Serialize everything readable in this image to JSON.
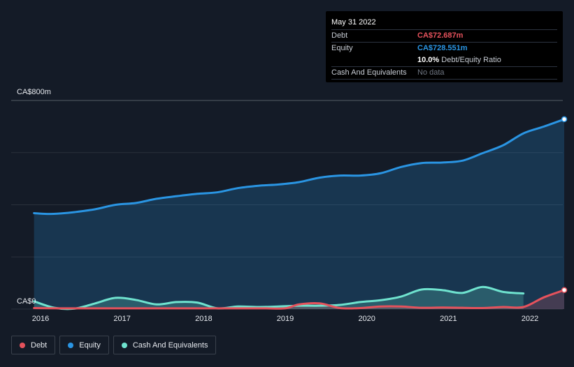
{
  "tooltip": {
    "date": "May 31 2022",
    "debt_label": "Debt",
    "debt_value": "CA$72.687m",
    "equity_label": "Equity",
    "equity_value": "CA$728.551m",
    "ratio_value": "10.0%",
    "ratio_label": "Debt/Equity Ratio",
    "cash_label": "Cash And Equivalents",
    "cash_value": "No data"
  },
  "legend": {
    "debt": "Debt",
    "equity": "Equity",
    "cash": "Cash And Equivalents"
  },
  "colors": {
    "debt": "#e5525c",
    "equity": "#2a95e3",
    "cash": "#6fe3cf",
    "background": "#141b27"
  },
  "chart_data": {
    "type": "area",
    "y_top_label": "CA$800m",
    "y_bottom_label": "CA$0",
    "ylim": [
      0,
      800
    ],
    "x_tick_labels": [
      "2016",
      "2017",
      "2018",
      "2019",
      "2020",
      "2021",
      "2022"
    ],
    "x_ticks": [
      2016,
      2017,
      2018,
      2019,
      2020,
      2021,
      2022
    ],
    "xlim": [
      2015.9,
      2022.42
    ],
    "series": [
      {
        "name": "Equity",
        "key": "equity",
        "x": [
          2015.92,
          2016.08,
          2016.25,
          2016.42,
          2016.67,
          2016.92,
          2017.17,
          2017.42,
          2017.67,
          2017.92,
          2018.17,
          2018.42,
          2018.67,
          2018.92,
          2019.17,
          2019.42,
          2019.67,
          2019.92,
          2020.17,
          2020.42,
          2020.67,
          2020.92,
          2021.17,
          2021.42,
          2021.67,
          2021.92,
          2022.17,
          2022.42
        ],
        "values": [
          368,
          365,
          367,
          372,
          383,
          400,
          407,
          423,
          433,
          442,
          448,
          464,
          473,
          478,
          487,
          504,
          512,
          512,
          521,
          545,
          560,
          562,
          569,
          598,
          628,
          674,
          700,
          728
        ]
      },
      {
        "name": "Cash And Equivalents",
        "key": "cash",
        "x": [
          2015.92,
          2016.17,
          2016.42,
          2016.67,
          2016.92,
          2017.17,
          2017.42,
          2017.67,
          2017.92,
          2018.17,
          2018.42,
          2018.67,
          2018.92,
          2019.17,
          2019.42,
          2019.67,
          2019.92,
          2020.17,
          2020.42,
          2020.67,
          2020.92,
          2021.17,
          2021.42,
          2021.67,
          2021.92
        ],
        "values": [
          30,
          5,
          2,
          22,
          43,
          35,
          18,
          27,
          25,
          3,
          10,
          8,
          10,
          13,
          13,
          16,
          27,
          34,
          48,
          75,
          73,
          62,
          85,
          66,
          60
        ]
      },
      {
        "name": "Debt",
        "key": "debt",
        "x": [
          2015.92,
          2016.25,
          2016.5,
          2016.75,
          2017.0,
          2017.25,
          2017.5,
          2017.75,
          2018.0,
          2018.25,
          2018.5,
          2018.75,
          2019.0,
          2019.17,
          2019.42,
          2019.67,
          2019.92,
          2020.17,
          2020.42,
          2020.67,
          2020.92,
          2021.17,
          2021.42,
          2021.67,
          2021.92,
          2022.17,
          2022.42
        ],
        "values": [
          4,
          3,
          3,
          3,
          3,
          3,
          3,
          3,
          3,
          3,
          3,
          3,
          3,
          18,
          22,
          4,
          4,
          10,
          10,
          5,
          6,
          5,
          4,
          8,
          8,
          45,
          73
        ]
      }
    ]
  }
}
